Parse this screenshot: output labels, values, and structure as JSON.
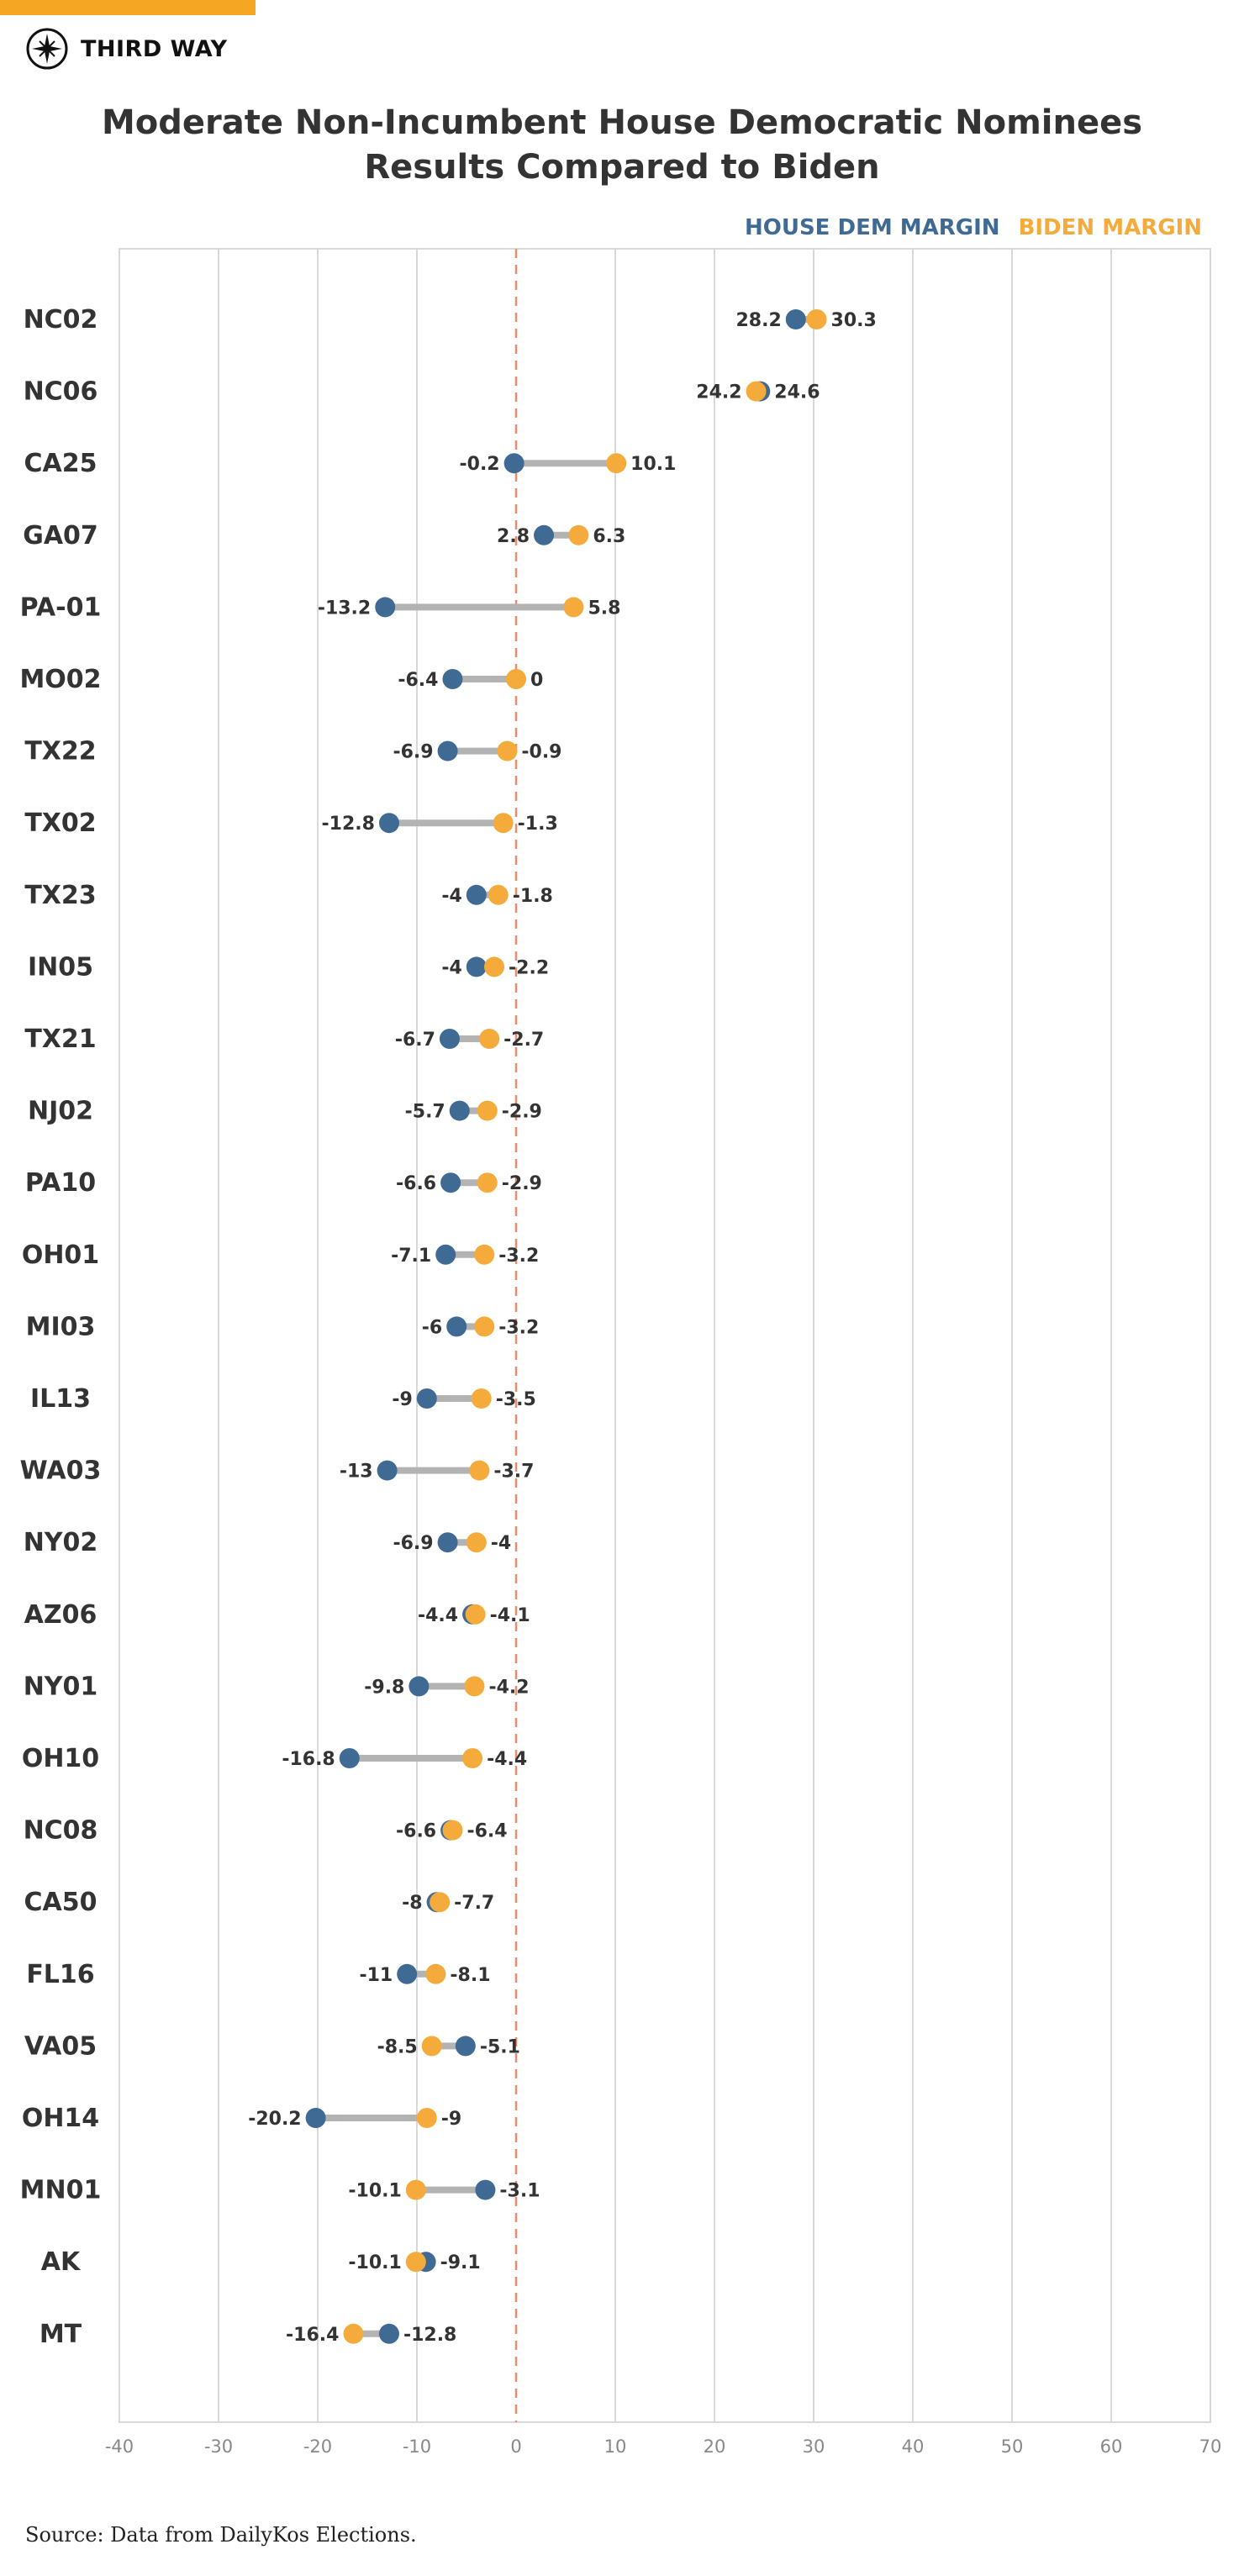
{
  "brand": {
    "name": "THIRD WAY",
    "logo_icon": "compass-star-icon"
  },
  "colors": {
    "accent": "#f5a623",
    "house": "#3f6a94",
    "biden": "#f5ab3c",
    "connector": "#b3b3b3",
    "zero_line": "#f08a6a",
    "grid": "#d9d9d9"
  },
  "chart_data": {
    "type": "dumbbell",
    "title": [
      "Moderate Non-Incumbent House Democratic Nominees",
      "Results Compared to Biden"
    ],
    "legend": {
      "placement": "top-right",
      "items": [
        "HOUSE DEM MARGIN",
        "BIDEN MARGIN"
      ]
    },
    "xlim": [
      -40,
      70
    ],
    "xticks": [
      "-40",
      "-30",
      "-20",
      "-10",
      "0",
      "10",
      "20",
      "30",
      "40",
      "50",
      "60",
      "70"
    ],
    "grid": true,
    "categories": [
      "NC02",
      "NC06",
      "CA25",
      "GA07",
      "PA-01",
      "MO02",
      "TX22",
      "TX02",
      "TX23",
      "IN05",
      "TX21",
      "NJ02",
      "PA10",
      "OH01",
      "MI03",
      "IL13",
      "WA03",
      "NY02",
      "AZ06",
      "NY01",
      "OH10",
      "NC08",
      "CA50",
      "FL16",
      "VA05",
      "OH14",
      "MN01",
      "AK",
      "MT"
    ],
    "series": [
      {
        "name": "HOUSE DEM MARGIN",
        "values": [
          28.2,
          24.6,
          -0.2,
          2.8,
          -13.2,
          -6.4,
          -6.9,
          -12.8,
          -4,
          -4,
          -6.7,
          -5.7,
          -6.6,
          -7.1,
          -6,
          -9,
          -13,
          -6.9,
          -4.4,
          -9.8,
          -16.8,
          -6.6,
          -8,
          -11,
          -5.1,
          -20.2,
          -3.1,
          -9.1,
          -12.8
        ]
      },
      {
        "name": "BIDEN MARGIN",
        "values": [
          30.3,
          24.2,
          10.1,
          6.3,
          5.8,
          0,
          -0.9,
          -1.3,
          -1.8,
          -2.2,
          -2.7,
          -2.9,
          -2.9,
          -3.2,
          -3.2,
          -3.5,
          -3.7,
          -4,
          -4.1,
          -4.2,
          -4.4,
          -6.4,
          -7.7,
          -8.1,
          -8.5,
          -9,
          -10.1,
          -10.1,
          -16.4
        ]
      }
    ]
  },
  "footer": {
    "source": "Source: Data from DailyKos Elections."
  }
}
